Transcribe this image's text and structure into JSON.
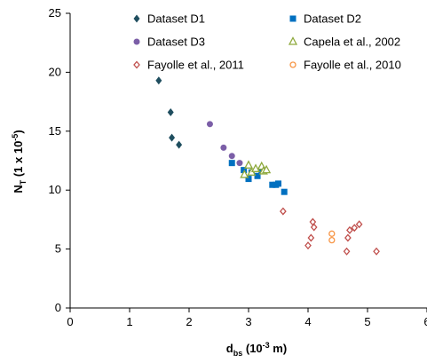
{
  "chart_data": {
    "type": "scatter",
    "xlim": [
      0,
      6
    ],
    "ylim": [
      0,
      25
    ],
    "x_ticks": [
      "0",
      "1",
      "2",
      "3",
      "4",
      "5",
      "6"
    ],
    "y_ticks": [
      "0",
      "5",
      "10",
      "15",
      "20",
      "25"
    ],
    "xlabel": {
      "main": "d",
      "sub": "bs",
      "rest": " (10",
      "sup": "-3",
      "end": " m)"
    },
    "ylabel": {
      "main": "N",
      "sub": "T",
      "rest": " (1 x 10",
      "sup": "-5",
      "end": ")"
    },
    "legend_position": "top",
    "grid": false,
    "series": [
      {
        "name": "Dataset D1",
        "marker": "diamond-filled",
        "color": "#1f4e5f",
        "points": [
          [
            1.49,
            19.3
          ],
          [
            1.69,
            16.6
          ],
          [
            1.71,
            14.45
          ],
          [
            1.83,
            13.85
          ]
        ]
      },
      {
        "name": "Dataset D2",
        "marker": "square-filled",
        "color": "#0070c0",
        "points": [
          [
            2.72,
            12.3
          ],
          [
            2.92,
            11.7
          ],
          [
            3.0,
            10.95
          ],
          [
            3.05,
            11.5
          ],
          [
            3.15,
            11.2
          ],
          [
            3.22,
            11.7
          ],
          [
            3.4,
            10.45
          ],
          [
            3.46,
            10.45
          ],
          [
            3.5,
            10.55
          ],
          [
            3.6,
            9.85
          ]
        ]
      },
      {
        "name": "Dataset D3",
        "marker": "circle-filled",
        "color": "#7b5ea7",
        "points": [
          [
            2.35,
            15.6
          ],
          [
            2.58,
            13.6
          ],
          [
            2.72,
            12.9
          ],
          [
            2.85,
            12.3
          ]
        ]
      },
      {
        "name": "Capela et al., 2002",
        "marker": "triangle-open",
        "color": "#8faa3e",
        "points": [
          [
            2.93,
            11.3
          ],
          [
            3.0,
            12.1
          ],
          [
            3.05,
            11.5
          ],
          [
            3.12,
            11.8
          ],
          [
            3.22,
            12.0
          ],
          [
            3.25,
            11.6
          ],
          [
            3.3,
            11.7
          ]
        ]
      },
      {
        "name": "Fayolle et al., 2011",
        "marker": "diamond-open",
        "color": "#c0504d",
        "points": [
          [
            3.58,
            8.2
          ],
          [
            4.0,
            5.3
          ],
          [
            4.05,
            5.95
          ],
          [
            4.08,
            7.3
          ],
          [
            4.1,
            6.85
          ],
          [
            4.65,
            4.8
          ],
          [
            4.67,
            5.95
          ],
          [
            4.7,
            6.6
          ],
          [
            4.78,
            6.8
          ],
          [
            4.86,
            7.1
          ],
          [
            5.15,
            4.8
          ]
        ]
      },
      {
        "name": "Fayolle et al., 2010",
        "marker": "circle-open",
        "color": "#f79646",
        "points": [
          [
            4.4,
            6.3
          ],
          [
            4.4,
            5.75
          ]
        ]
      }
    ]
  }
}
